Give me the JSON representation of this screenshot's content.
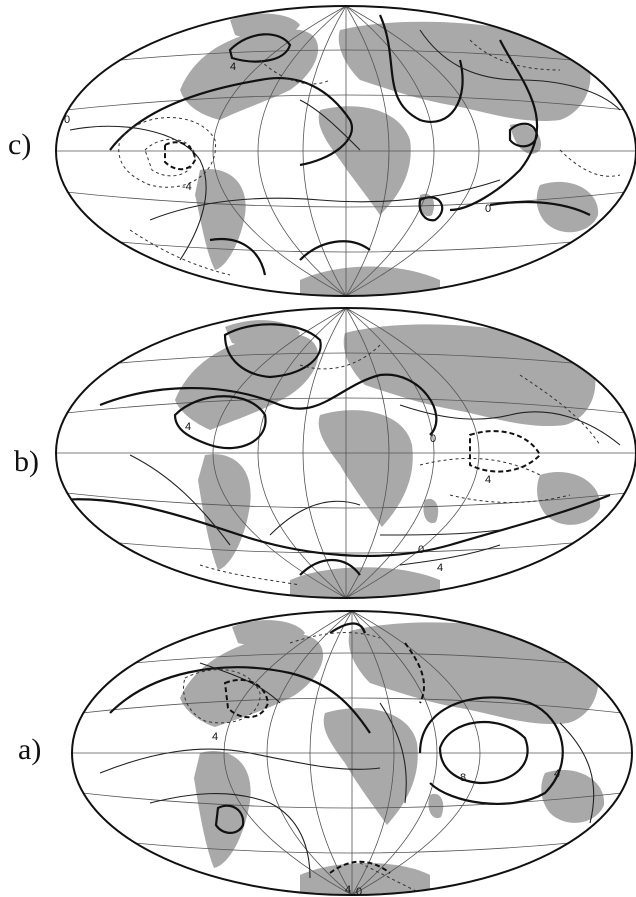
{
  "panels": [
    {
      "id": "c",
      "label": "c)",
      "contour_labels": [
        "4",
        "0",
        "-4",
        "0"
      ]
    },
    {
      "id": "b",
      "label": "b)",
      "contour_labels": [
        "4",
        "0",
        "4",
        "0",
        "4"
      ]
    },
    {
      "id": "a",
      "label": "a)",
      "contour_labels": [
        "4",
        "8",
        "4",
        "4",
        "0"
      ]
    }
  ]
}
